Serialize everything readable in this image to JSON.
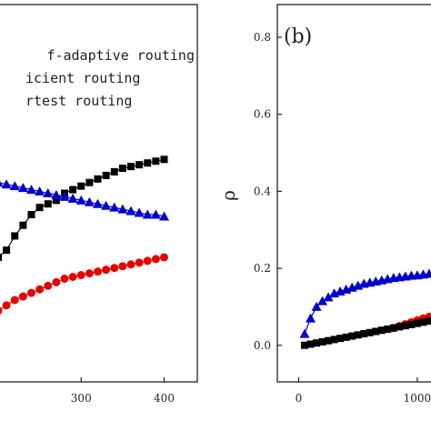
{
  "chart_data": [
    {
      "type": "scatter",
      "panel_label": "",
      "xlabel": "",
      "ylabel": "",
      "xlim": [
        200,
        440
      ],
      "ylim": [
        0.07,
        1.13
      ],
      "x_ticks": [
        {
          "value": 300,
          "label": "300"
        },
        {
          "value": 400,
          "label": "400"
        }
      ],
      "legend": {
        "placement": "top-right",
        "entries": [
          "f-adaptive routing",
          "icient routing",
          "rtest routing"
        ]
      },
      "series": [
        {
          "marker": "square",
          "color": "#000000",
          "x": [
            200,
            210,
            220,
            230,
            240,
            250,
            260,
            270,
            280,
            290,
            300,
            310,
            320,
            330,
            340,
            350,
            360,
            370,
            380,
            390,
            400
          ],
          "y": [
            0.42,
            0.44,
            0.48,
            0.51,
            0.54,
            0.56,
            0.57,
            0.58,
            0.6,
            0.61,
            0.62,
            0.63,
            0.64,
            0.65,
            0.66,
            0.67,
            0.675,
            0.68,
            0.685,
            0.69,
            0.695
          ]
        },
        {
          "marker": "triangle",
          "color": "#0000cc",
          "x": [
            200,
            210,
            220,
            230,
            240,
            250,
            260,
            270,
            280,
            290,
            300,
            310,
            320,
            330,
            340,
            350,
            360,
            370,
            380,
            390,
            400
          ],
          "y": [
            0.63,
            0.625,
            0.62,
            0.615,
            0.61,
            0.605,
            0.6,
            0.595,
            0.59,
            0.585,
            0.58,
            0.575,
            0.57,
            0.565,
            0.56,
            0.555,
            0.55,
            0.545,
            0.54,
            0.54,
            0.535
          ]
        },
        {
          "marker": "circle",
          "color": "#e60000",
          "x": [
            200,
            210,
            220,
            230,
            240,
            250,
            260,
            270,
            280,
            290,
            300,
            310,
            320,
            330,
            340,
            350,
            360,
            370,
            380,
            390,
            400
          ],
          "y": [
            0.27,
            0.285,
            0.3,
            0.31,
            0.32,
            0.33,
            0.34,
            0.35,
            0.36,
            0.365,
            0.37,
            0.375,
            0.38,
            0.385,
            0.39,
            0.395,
            0.4,
            0.405,
            0.41,
            0.415,
            0.42
          ]
        }
      ]
    },
    {
      "type": "scatter",
      "panel_label": "(b)",
      "xlabel": "",
      "ylabel": "ρ",
      "xlim": [
        -180,
        1200
      ],
      "ylim": [
        -0.095,
        0.885
      ],
      "x_ticks": [
        {
          "value": 0,
          "label": "0"
        },
        {
          "value": 1000,
          "label": "1000"
        }
      ],
      "y_ticks": [
        {
          "value": 0.0,
          "label": "0.0"
        },
        {
          "value": 0.2,
          "label": "0.2"
        },
        {
          "value": 0.4,
          "label": "0.4"
        },
        {
          "value": 0.6,
          "label": "0.6"
        },
        {
          "value": 0.8,
          "label": "0.8"
        }
      ],
      "series": [
        {
          "marker": "triangle",
          "color": "#0000cc",
          "x": [
            50,
            100,
            150,
            200,
            250,
            300,
            350,
            400,
            450,
            500,
            550,
            600,
            650,
            700,
            750,
            800,
            850,
            900,
            950,
            1000,
            1050,
            1100,
            1150
          ],
          "y": [
            0.03,
            0.07,
            0.1,
            0.115,
            0.125,
            0.135,
            0.14,
            0.145,
            0.15,
            0.155,
            0.16,
            0.163,
            0.166,
            0.169,
            0.172,
            0.175,
            0.177,
            0.179,
            0.181,
            0.182,
            0.184,
            0.186,
            0.188
          ]
        },
        {
          "marker": "circle",
          "color": "#e60000",
          "x": [
            800,
            850,
            900,
            950,
            1000,
            1050,
            1100,
            1150
          ],
          "y": [
            0.045,
            0.05,
            0.055,
            0.06,
            0.065,
            0.07,
            0.074,
            0.078
          ]
        },
        {
          "marker": "square",
          "color": "#000000",
          "x": [
            50,
            100,
            150,
            200,
            250,
            300,
            350,
            400,
            450,
            500,
            550,
            600,
            650,
            700,
            750,
            800,
            850,
            900,
            950,
            1000,
            1050,
            1100,
            1150
          ],
          "y": [
            0.0,
            0.003,
            0.006,
            0.009,
            0.012,
            0.015,
            0.018,
            0.021,
            0.024,
            0.027,
            0.03,
            0.033,
            0.036,
            0.039,
            0.042,
            0.045,
            0.048,
            0.051,
            0.054,
            0.057,
            0.06,
            0.063,
            0.066
          ]
        }
      ]
    }
  ]
}
